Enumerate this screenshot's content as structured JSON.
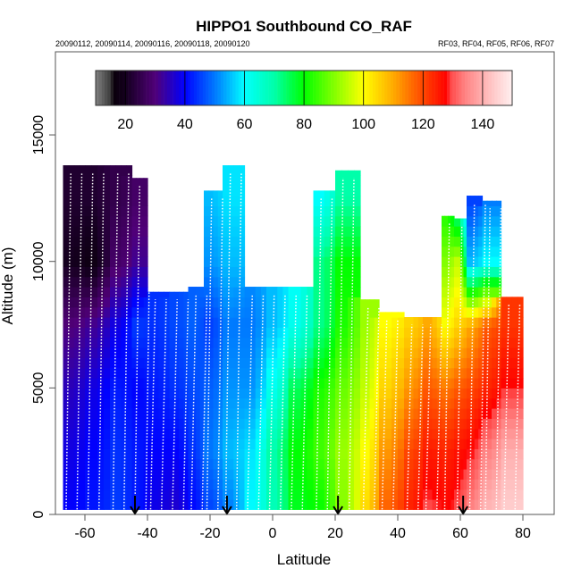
{
  "chart_data": {
    "type": "heatmap",
    "title": "HIPPO1 Southbound CO_RAF",
    "subtitle_left": "20090112, 20090114, 20090116, 20090118, 20090120",
    "subtitle_right": "RF03, RF04, RF05, RF06, RF07",
    "xlabel": "Latitude",
    "ylabel": "Altitude (m)",
    "xlim": [
      -72,
      90
    ],
    "ylim": [
      0,
      18000
    ],
    "xticks": [
      "-60",
      "-40",
      "-20",
      "0",
      "20",
      "40",
      "60",
      "80"
    ],
    "xtick_values": [
      -60,
      -40,
      -20,
      0,
      20,
      40,
      60,
      80
    ],
    "yticks": [
      "0",
      "5000",
      "10000",
      "15000"
    ],
    "ytick_values": [
      0,
      5000,
      10000,
      15000
    ],
    "colorbar": {
      "range": [
        10,
        150
      ],
      "ticks": [
        "20",
        "40",
        "60",
        "80",
        "100",
        "120",
        "140"
      ],
      "tick_values": [
        20,
        40,
        60,
        80,
        100,
        120,
        140
      ]
    },
    "arrow_latitudes": [
      -44,
      -14.6,
      20.9,
      60.9
    ],
    "altitude_levels": [
      0,
      2500,
      5000,
      7500,
      10000,
      12500,
      14000
    ],
    "bands": [
      {
        "lat": [
          -67,
          -60
        ],
        "top": 13800,
        "co": [
          40,
          38,
          35,
          30,
          20,
          22,
          22
        ]
      },
      {
        "lat": [
          -60,
          -52
        ],
        "top": 13800,
        "co": [
          42,
          40,
          38,
          32,
          18,
          22,
          22
        ]
      },
      {
        "lat": [
          -52,
          -45
        ],
        "top": 13800,
        "co": [
          45,
          44,
          42,
          38,
          28,
          25,
          25
        ]
      },
      {
        "lat": [
          -45,
          -40
        ],
        "top": 13300,
        "co": [
          42,
          42,
          40,
          45,
          32,
          28,
          28
        ]
      },
      {
        "lat": [
          -40,
          -33
        ],
        "top": 8800,
        "co": [
          38,
          40,
          42,
          44,
          44,
          44,
          44
        ]
      },
      {
        "lat": [
          -33,
          -27
        ],
        "top": 8800,
        "co": [
          36,
          40,
          44,
          46,
          46,
          46,
          46
        ]
      },
      {
        "lat": [
          -27,
          -22
        ],
        "top": 9000,
        "co": [
          40,
          44,
          46,
          48,
          48,
          48,
          48
        ]
      },
      {
        "lat": [
          -22,
          -16
        ],
        "top": 12800,
        "co": [
          45,
          50,
          48,
          45,
          52,
          55,
          55
        ]
      },
      {
        "lat": [
          -16,
          -9
        ],
        "top": 13800,
        "co": [
          50,
          55,
          52,
          50,
          55,
          58,
          58
        ]
      },
      {
        "lat": [
          -9,
          -2
        ],
        "top": 9000,
        "co": [
          60,
          58,
          52,
          50,
          52,
          52,
          52
        ]
      },
      {
        "lat": [
          -2,
          5
        ],
        "top": 9000,
        "co": [
          68,
          70,
          62,
          55,
          55,
          55,
          55
        ]
      },
      {
        "lat": [
          5,
          13
        ],
        "top": 9000,
        "co": [
          78,
          80,
          75,
          62,
          60,
          60,
          60
        ]
      },
      {
        "lat": [
          13,
          20
        ],
        "top": 12800,
        "co": [
          80,
          85,
          82,
          72,
          72,
          60,
          60
        ]
      },
      {
        "lat": [
          20,
          28
        ],
        "top": 13600,
        "co": [
          90,
          92,
          88,
          82,
          80,
          70,
          70
        ]
      },
      {
        "lat": [
          28,
          34
        ],
        "top": 8500,
        "co": [
          105,
          100,
          95,
          92,
          92,
          92,
          92
        ]
      },
      {
        "lat": [
          34,
          42
        ],
        "top": 8000,
        "co": [
          118,
          112,
          105,
          100,
          100,
          100,
          100
        ]
      },
      {
        "lat": [
          42,
          48
        ],
        "top": 7800,
        "co": [
          125,
          120,
          112,
          105,
          105,
          105,
          105
        ]
      },
      {
        "lat": [
          48,
          54
        ],
        "top": 7800,
        "co": [
          130,
          125,
          118,
          110,
          110,
          110,
          110
        ]
      },
      {
        "lat": [
          54,
          58
        ],
        "top": 11800,
        "co": [
          128,
          124,
          115,
          100,
          90,
          80,
          80
        ]
      },
      {
        "lat": [
          58,
          62
        ],
        "top": 11700,
        "co": [
          130,
          126,
          118,
          105,
          95,
          65,
          65
        ]
      },
      {
        "lat": [
          62,
          67
        ],
        "top": 12600,
        "co": [
          135,
          128,
          120,
          110,
          55,
          45,
          45
        ]
      },
      {
        "lat": [
          67,
          73
        ],
        "top": 12400,
        "co": [
          142,
          134,
          124,
          118,
          60,
          50,
          50
        ]
      },
      {
        "lat": [
          73,
          80
        ],
        "top": 8600,
        "co": [
          145,
          140,
          128,
          122,
          122,
          122,
          122
        ]
      }
    ]
  }
}
